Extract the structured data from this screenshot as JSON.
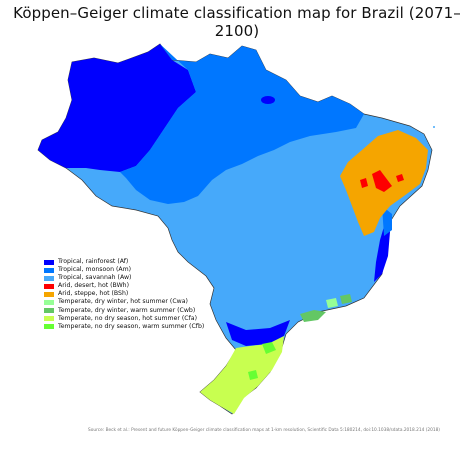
{
  "title": "Köppen–Geiger climate classification map for Brazil (2071–2100)",
  "legend": [
    {
      "label": "Tropical, rainforest (Af)",
      "color": "#0000fe"
    },
    {
      "label": "Tropical, monsoon (Am)",
      "color": "#0077ff"
    },
    {
      "label": "Tropical, savannah (Aw)",
      "color": "#46a9fa"
    },
    {
      "label": "Arid, desert, hot (BWh)",
      "color": "#fe0000"
    },
    {
      "label": "Arid, steppe, hot (BSh)",
      "color": "#f5a500"
    },
    {
      "label": "Temperate, dry winter, hot summer (Cwa)",
      "color": "#96ff96"
    },
    {
      "label": "Temperate, dry winter, warm summer (Cwb)",
      "color": "#63c764"
    },
    {
      "label": "Temperate, no dry season, hot summer (Cfa)",
      "color": "#c8ff50"
    },
    {
      "label": "Temperate, no dry season, warm summer (Cfb)",
      "color": "#66ff33"
    }
  ],
  "source": "Source: Beck et al.: Present and future Köppen-Geiger climate classification maps at 1-km resolution, Scientific Data 5:180214, doi:10.1038/sdata.2018.214 (2018)"
}
